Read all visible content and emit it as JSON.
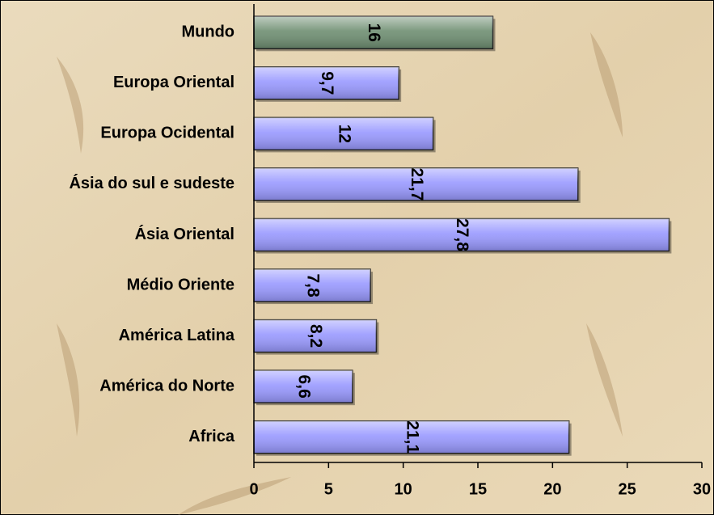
{
  "chart_data": {
    "type": "hbar",
    "categories": [
      "Mundo",
      "Europa Oriental",
      "Europa Ocidental",
      "Ásia do sul e sudeste",
      "Ásia Oriental",
      "Médio Oriente",
      "América Latina",
      "América do Norte",
      "Africa"
    ],
    "values": [
      16,
      9.7,
      12,
      21.7,
      27.8,
      7.8,
      8.2,
      6.6,
      21.1
    ],
    "value_labels": [
      "16",
      "9,7",
      "12",
      "21,7",
      "27,8",
      "7,8",
      "8,2",
      "6,6",
      "21,1"
    ],
    "colors": [
      "#6f8f72",
      "#9999ff",
      "#9999ff",
      "#9999ff",
      "#9999ff",
      "#9999ff",
      "#9999ff",
      "#9999ff",
      "#9999ff"
    ],
    "xlim": [
      0,
      30
    ],
    "xticks": [
      0,
      5,
      10,
      15,
      20,
      25,
      30
    ]
  }
}
